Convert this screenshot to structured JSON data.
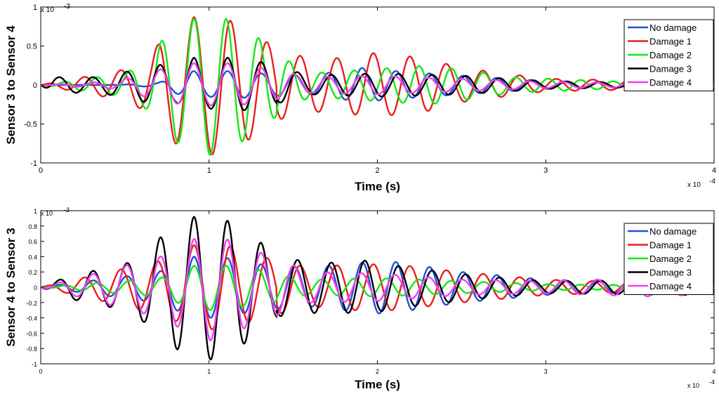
{
  "chart_data": [
    {
      "type": "line",
      "ylabel": "Sensor 3 to Sensor 4",
      "xlabel": "Time (s)",
      "xlim": [
        0,
        4
      ],
      "ylim": [
        -1,
        1
      ],
      "x_ticks": [
        "0",
        "1",
        "2",
        "3",
        "4"
      ],
      "y_ticks": [
        "-1",
        "-0.5",
        "0",
        "0.5",
        "1"
      ],
      "x_multiplier": "x 10",
      "x_exponent": "-4",
      "y_multiplier": "x 10",
      "y_exponent": "-3",
      "legend_position": "top-right",
      "grid": false,
      "series": [
        {
          "name": "No damage",
          "color": "#1f4fd8",
          "values": [
            [
              0.45,
              0.0
            ],
            [
              0.7,
              0.03
            ],
            [
              0.9,
              0.18
            ],
            [
              1.0,
              -0.15
            ],
            [
              1.1,
              0.18
            ],
            [
              1.3,
              0.15
            ],
            [
              1.6,
              0.12
            ],
            [
              1.9,
              0.22
            ],
            [
              2.1,
              0.18
            ],
            [
              2.5,
              0.12
            ],
            [
              3.0,
              0.05
            ],
            [
              3.8,
              0.02
            ]
          ]
        },
        {
          "name": "Damage 1",
          "color": "#e81e1e",
          "values": [
            [
              0.5,
              0.2
            ],
            [
              0.66,
              -0.38
            ],
            [
              0.71,
              0.57
            ],
            [
              0.8,
              -0.75
            ],
            [
              0.91,
              0.87
            ],
            [
              1.0,
              -0.9
            ],
            [
              1.1,
              0.85
            ],
            [
              1.2,
              -0.75
            ],
            [
              1.31,
              0.6
            ],
            [
              1.41,
              -0.45
            ],
            [
              1.52,
              0.38
            ],
            [
              1.71,
              0.33
            ],
            [
              1.87,
              0.38
            ],
            [
              1.97,
              -0.41
            ],
            [
              2.27,
              0.35
            ],
            [
              2.5,
              -0.22
            ],
            [
              3.0,
              0.08
            ],
            [
              3.8,
              -0.05
            ]
          ]
        },
        {
          "name": "Damage 2",
          "color": "#16e616",
          "values": [
            [
              0.5,
              0.15
            ],
            [
              0.66,
              -0.35
            ],
            [
              0.71,
              0.55
            ],
            [
              0.8,
              -0.72
            ],
            [
              0.91,
              0.85
            ],
            [
              1.0,
              -0.9
            ],
            [
              1.1,
              0.85
            ],
            [
              1.2,
              -0.72
            ],
            [
              1.31,
              0.58
            ],
            [
              1.4,
              -0.4
            ],
            [
              1.6,
              0.15
            ],
            [
              2.3,
              0.25
            ],
            [
              2.5,
              0.2
            ],
            [
              2.8,
              0.1
            ],
            [
              3.6,
              0.03
            ]
          ]
        },
        {
          "name": "Damage 3",
          "color": "#000000",
          "values": [
            [
              0.07,
              0.1
            ],
            [
              0.35,
              -0.1
            ],
            [
              0.71,
              0.26
            ],
            [
              0.8,
              -0.22
            ],
            [
              0.91,
              0.35
            ],
            [
              1.0,
              -0.3
            ],
            [
              1.11,
              0.35
            ],
            [
              1.3,
              0.3
            ],
            [
              1.6,
              0.12
            ],
            [
              2.0,
              0.15
            ],
            [
              2.5,
              0.12
            ],
            [
              3.0,
              0.05
            ],
            [
              3.8,
              0.02
            ]
          ]
        },
        {
          "name": "Damage 4",
          "color": "#f040f0",
          "values": [
            [
              0.45,
              0.05
            ],
            [
              0.71,
              0.2
            ],
            [
              0.91,
              0.28
            ],
            [
              1.0,
              -0.26
            ],
            [
              1.11,
              0.28
            ],
            [
              1.31,
              0.22
            ],
            [
              1.6,
              0.1
            ],
            [
              2.0,
              0.12
            ],
            [
              2.5,
              0.08
            ],
            [
              3.0,
              0.04
            ],
            [
              3.8,
              0.02
            ]
          ]
        }
      ]
    },
    {
      "type": "line",
      "ylabel": "Sensor 4 to Sensor 3",
      "xlabel": "Time (s)",
      "xlim": [
        0,
        4
      ],
      "ylim": [
        -1,
        1
      ],
      "x_ticks": [
        "0",
        "1",
        "2",
        "3",
        "4"
      ],
      "y_ticks": [
        "-1",
        "-0.8",
        "-0.6",
        "-0.4",
        "-0.2",
        "0",
        "0.2",
        "0.4",
        "0.6",
        "0.8",
        "1"
      ],
      "x_multiplier": "x 10",
      "x_exponent": "-4",
      "y_multiplier": "x 10",
      "y_exponent": "-3",
      "legend_position": "top-right",
      "grid": false,
      "series": [
        {
          "name": "No damage",
          "color": "#1f4fd8",
          "values": [
            [
              0.7,
              0.2
            ],
            [
              0.91,
              0.4
            ],
            [
              1.0,
              -0.4
            ],
            [
              1.11,
              0.38
            ],
            [
              1.31,
              0.3
            ],
            [
              1.6,
              -0.25
            ],
            [
              1.79,
              0.3
            ],
            [
              2.05,
              0.35
            ],
            [
              2.5,
              0.2
            ],
            [
              3.0,
              0.1
            ],
            [
              3.8,
              0.05
            ]
          ]
        },
        {
          "name": "Damage 1",
          "color": "#e81e1e",
          "values": [
            [
              0.71,
              0.35
            ],
            [
              0.91,
              0.55
            ],
            [
              1.0,
              -0.55
            ],
            [
              1.11,
              0.55
            ],
            [
              1.31,
              0.4
            ],
            [
              1.6,
              -0.25
            ],
            [
              1.82,
              0.3
            ],
            [
              2.1,
              0.3
            ],
            [
              2.5,
              0.2
            ],
            [
              3.0,
              0.1
            ],
            [
              3.8,
              0.05
            ]
          ]
        },
        {
          "name": "Damage 2",
          "color": "#16e616",
          "values": [
            [
              0.71,
              0.12
            ],
            [
              0.91,
              0.28
            ],
            [
              1.0,
              -0.3
            ],
            [
              1.11,
              0.28
            ],
            [
              1.31,
              0.22
            ],
            [
              1.6,
              0.1
            ],
            [
              2.0,
              0.12
            ],
            [
              2.5,
              0.08
            ],
            [
              3.0,
              0.04
            ],
            [
              3.8,
              0.02
            ]
          ]
        },
        {
          "name": "Damage 3",
          "color": "#000000",
          "values": [
            [
              0.17,
              0.15
            ],
            [
              0.5,
              0.3
            ],
            [
              0.61,
              -0.45
            ],
            [
              0.71,
              0.65
            ],
            [
              0.8,
              -0.8
            ],
            [
              0.91,
              0.92
            ],
            [
              1.0,
              -0.95
            ],
            [
              1.1,
              0.88
            ],
            [
              1.2,
              -0.75
            ],
            [
              1.31,
              0.58
            ],
            [
              1.41,
              -0.38
            ],
            [
              1.71,
              0.32
            ],
            [
              1.92,
              0.35
            ],
            [
              2.2,
              0.25
            ],
            [
              2.6,
              0.15
            ],
            [
              3.0,
              0.08
            ],
            [
              3.8,
              -0.1
            ]
          ]
        },
        {
          "name": "Damage 4",
          "color": "#f040f0",
          "values": [
            [
              0.71,
              0.4
            ],
            [
              0.91,
              0.63
            ],
            [
              1.0,
              -0.7
            ],
            [
              1.1,
              0.63
            ],
            [
              1.31,
              0.45
            ],
            [
              1.6,
              -0.2
            ],
            [
              2.0,
              0.18
            ],
            [
              2.5,
              0.1
            ],
            [
              3.0,
              0.08
            ],
            [
              3.6,
              0.12
            ],
            [
              3.9,
              0.1
            ]
          ]
        }
      ]
    }
  ]
}
